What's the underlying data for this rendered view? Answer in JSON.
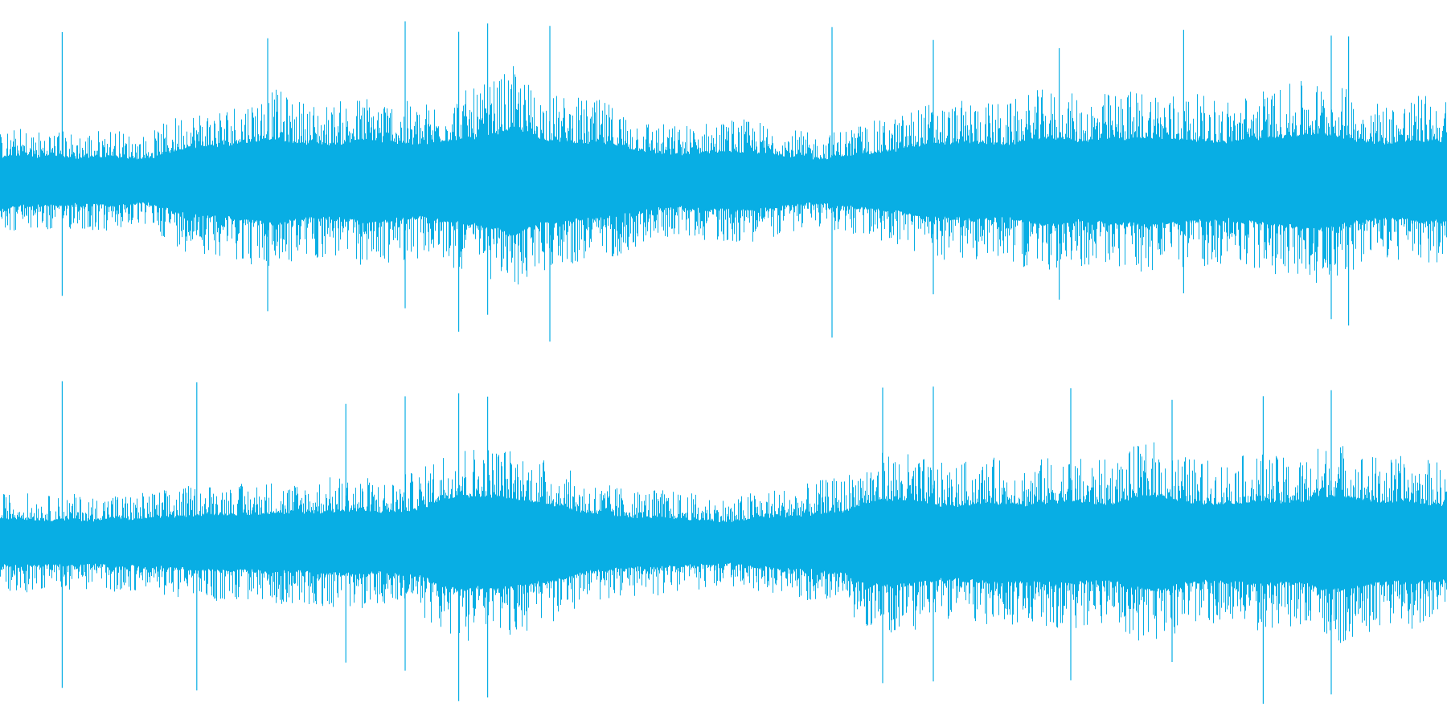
{
  "waveform": {
    "color": "#08aee4",
    "background": "#ffffff",
    "channels": [
      {
        "name": "",
        "envelope": [
          0.2,
          0.22,
          0.21,
          0.22,
          0.2,
          0.21,
          0.22,
          0.2,
          0.19,
          0.24,
          0.29,
          0.3,
          0.31,
          0.33,
          0.36,
          0.38,
          0.34,
          0.33,
          0.32,
          0.34,
          0.36,
          0.35,
          0.33,
          0.32,
          0.35,
          0.37,
          0.38,
          0.42,
          0.47,
          0.4,
          0.36,
          0.35,
          0.34,
          0.33,
          0.3,
          0.27,
          0.24,
          0.23,
          0.24,
          0.25,
          0.26,
          0.25,
          0.24,
          0.22,
          0.2,
          0.19,
          0.22,
          0.24,
          0.25,
          0.27,
          0.31,
          0.33,
          0.32,
          0.34,
          0.33,
          0.32,
          0.36,
          0.38,
          0.37,
          0.35,
          0.36,
          0.37,
          0.38,
          0.39,
          0.37,
          0.36,
          0.35,
          0.34,
          0.36,
          0.38,
          0.39,
          0.41,
          0.42,
          0.4,
          0.36,
          0.34,
          0.33,
          0.35,
          0.36,
          0.34
        ],
        "spikes": [
          0.043,
          0.185,
          0.28,
          0.317,
          0.337,
          0.38,
          0.575,
          0.645,
          0.732,
          0.818,
          0.92,
          0.932
        ]
      },
      {
        "name": "",
        "envelope": [
          0.2,
          0.21,
          0.2,
          0.19,
          0.2,
          0.19,
          0.21,
          0.2,
          0.21,
          0.22,
          0.23,
          0.24,
          0.25,
          0.24,
          0.25,
          0.26,
          0.25,
          0.26,
          0.27,
          0.28,
          0.27,
          0.26,
          0.28,
          0.3,
          0.38,
          0.42,
          0.4,
          0.41,
          0.39,
          0.36,
          0.34,
          0.3,
          0.26,
          0.24,
          0.23,
          0.22,
          0.22,
          0.21,
          0.2,
          0.19,
          0.18,
          0.21,
          0.22,
          0.23,
          0.24,
          0.26,
          0.27,
          0.34,
          0.37,
          0.38,
          0.36,
          0.33,
          0.32,
          0.34,
          0.35,
          0.34,
          0.33,
          0.35,
          0.36,
          0.35,
          0.34,
          0.35,
          0.4,
          0.42,
          0.38,
          0.35,
          0.34,
          0.35,
          0.36,
          0.37,
          0.35,
          0.36,
          0.4,
          0.42,
          0.39,
          0.36,
          0.35,
          0.36,
          0.34,
          0.33
        ],
        "spikes": [
          0.043,
          0.136,
          0.239,
          0.28,
          0.317,
          0.337,
          0.61,
          0.645,
          0.74,
          0.81,
          0.873,
          0.92
        ]
      }
    ]
  }
}
